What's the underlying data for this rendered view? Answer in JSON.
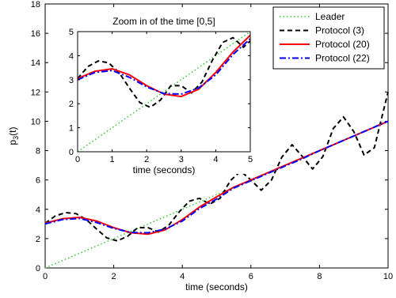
{
  "chart_data": {
    "type": "line",
    "xlabel": "time  (seconds)",
    "ylabel_base": "p",
    "ylabel_sub": "3",
    "ylabel_tail": "(t)",
    "xlim": [
      0,
      10
    ],
    "ylim": [
      0,
      18
    ],
    "xticks": [
      "0",
      "2",
      "4",
      "6",
      "8",
      "10"
    ],
    "yticks": [
      "0",
      "2",
      "4",
      "6",
      "8",
      "10",
      "12",
      "14",
      "16",
      "18"
    ],
    "grid": false,
    "legend": {
      "placement": "top-right",
      "entries": [
        "Leader",
        "Protocol (3)",
        "Protocol (20)",
        "Protocol (22)"
      ]
    },
    "series": [
      {
        "name": "Leader",
        "color": "#33cc33",
        "style": "dotted",
        "x": [
          0,
          10
        ],
        "y": [
          0,
          10
        ]
      },
      {
        "name": "Protocol (3)",
        "color": "#000000",
        "style": "dashed",
        "x": [
          0,
          0.3,
          0.6,
          0.9,
          1.2,
          1.5,
          1.8,
          2.1,
          2.4,
          2.7,
          3.0,
          3.3,
          3.6,
          3.9,
          4.2,
          4.5,
          4.8,
          5.1,
          5.4,
          5.7,
          6.0,
          6.3,
          6.6,
          6.9,
          7.2,
          7.5,
          7.8,
          8.1,
          8.4,
          8.7,
          9.0,
          9.3,
          9.6,
          9.8,
          10.0
        ],
        "y": [
          3.05,
          3.55,
          3.78,
          3.7,
          3.3,
          2.65,
          2.05,
          1.85,
          2.15,
          2.75,
          2.75,
          2.45,
          2.9,
          3.8,
          4.55,
          4.75,
          4.35,
          4.75,
          5.95,
          6.6,
          6.0,
          5.3,
          6.0,
          7.55,
          8.4,
          7.6,
          6.75,
          7.6,
          9.5,
          10.3,
          9.3,
          7.7,
          8.2,
          10.1,
          12.0
        ]
      },
      {
        "name": "Protocol (20)",
        "color": "#ff0000",
        "style": "solid",
        "x": [
          0,
          0.5,
          1.0,
          1.5,
          2.0,
          2.5,
          3.0,
          3.5,
          4.0,
          4.5,
          5.0,
          5.5,
          6.0,
          6.5,
          7.0,
          7.5,
          8.0,
          8.5,
          9.0,
          9.5,
          10.0
        ],
        "y": [
          3.05,
          3.35,
          3.45,
          3.2,
          2.75,
          2.4,
          2.3,
          2.6,
          3.3,
          4.15,
          4.85,
          5.5,
          6.0,
          6.5,
          7.0,
          7.5,
          8.0,
          8.5,
          9.0,
          9.5,
          10.0
        ]
      },
      {
        "name": "Protocol (22)",
        "color": "#0000ff",
        "style": "dashdot",
        "x": [
          0,
          0.5,
          1.0,
          1.5,
          2.0,
          2.5,
          3.0,
          3.5,
          4.0,
          4.5,
          5.0,
          5.5,
          6.0,
          6.5,
          7.0,
          7.5,
          8.0,
          8.5,
          9.0,
          9.5,
          10.0
        ],
        "y": [
          3.0,
          3.3,
          3.38,
          3.1,
          2.7,
          2.42,
          2.4,
          2.65,
          3.2,
          4.05,
          4.7,
          5.45,
          5.95,
          6.45,
          6.95,
          7.45,
          8.0,
          8.5,
          9.0,
          9.5,
          10.0
        ]
      }
    ],
    "inset": {
      "title": "Zoom in of the time [0,5]",
      "xlabel": "time  (seconds)",
      "xlim": [
        0,
        5
      ],
      "ylim": [
        0,
        5
      ],
      "xticks": [
        "0",
        "1",
        "2",
        "3",
        "4",
        "5"
      ],
      "yticks": [
        "0",
        "1",
        "2",
        "3",
        "4",
        "5"
      ]
    }
  }
}
